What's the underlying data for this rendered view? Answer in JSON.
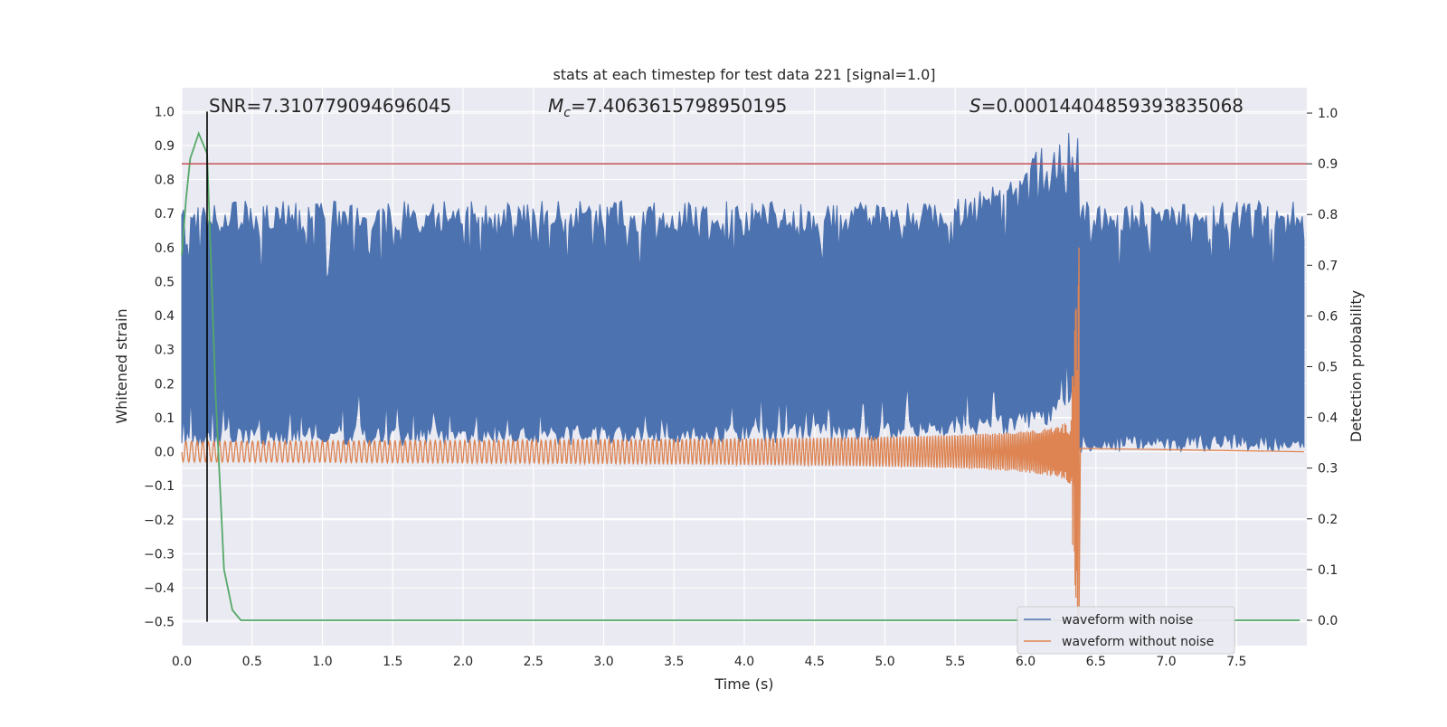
{
  "chart_data": {
    "type": "line",
    "title": "stats at each timestep for test data 221 [signal=1.0]",
    "xlabel": "Time (s)",
    "ylabel_left": "Whitened strain",
    "ylabel_right": "Detection probability",
    "xlim": [
      0.0,
      8.0
    ],
    "ylim_left": [
      -0.57,
      1.07
    ],
    "ylim_right": [
      -0.05,
      1.05
    ],
    "grid": true,
    "x_ticks": [
      "0.0",
      "0.5",
      "1.0",
      "1.5",
      "2.0",
      "2.5",
      "3.0",
      "3.5",
      "4.0",
      "4.5",
      "5.0",
      "5.5",
      "6.0",
      "6.5",
      "7.0",
      "7.5"
    ],
    "y_ticks_left": [
      "1.0",
      "0.9",
      "0.8",
      "0.7",
      "0.6",
      "0.5",
      "0.4",
      "0.3",
      "0.2",
      "0.1",
      "0.0",
      "−0.1",
      "−0.2",
      "−0.3",
      "−0.4",
      "−0.5"
    ],
    "y_ticks_right": [
      "1.0",
      "0.9",
      "0.8",
      "0.7",
      "0.6",
      "0.5",
      "0.4",
      "0.3",
      "0.2",
      "0.1",
      "0.0"
    ],
    "annotations": {
      "snr": "SNR=7.310779094696045",
      "mc_symbol": "M",
      "mc_sub": "c",
      "mc_value": "=7.4063615798950195",
      "s_symbol": "S",
      "s_value": "=0.00014404859393835068"
    },
    "threshold": {
      "value_right": 0.9,
      "color": "#c44e52"
    },
    "marker_time": 0.18,
    "merger_time": 6.38,
    "legend": [
      {
        "label": "waveform with noise",
        "color": "#4c72b0"
      },
      {
        "label": "waveform without noise",
        "color": "#dd8452"
      }
    ],
    "series": [
      {
        "name": "waveform with noise",
        "axis": "left",
        "color": "#4c72b0",
        "lower_envelope": {
          "start": 0.0,
          "noise_amplitude": 0.06
        },
        "upper_envelope": {
          "baseline": 0.7,
          "noise_amplitude": 0.07,
          "peak_value": 1.0,
          "peak_time": 6.3
        }
      },
      {
        "name": "waveform without noise",
        "axis": "left",
        "color": "#dd8452",
        "chirp": {
          "start_amplitude": 0.03,
          "peak_positive": 0.6,
          "peak_negative": -0.5,
          "merger_time": 6.38,
          "post_merger_value": 0.0
        }
      },
      {
        "name": "detection probability",
        "axis": "right",
        "color": "#55a868",
        "x": [
          0.0,
          0.03,
          0.06,
          0.12,
          0.18,
          0.24,
          0.3,
          0.36,
          0.42,
          1.0,
          2.0,
          3.0,
          4.0,
          5.0,
          6.0,
          7.0,
          7.95
        ],
        "y": [
          0.72,
          0.83,
          0.91,
          0.96,
          0.92,
          0.45,
          0.1,
          0.02,
          0.0,
          0.0,
          0.0,
          0.0,
          0.0,
          0.0,
          0.0,
          0.0,
          0.0
        ]
      }
    ]
  }
}
